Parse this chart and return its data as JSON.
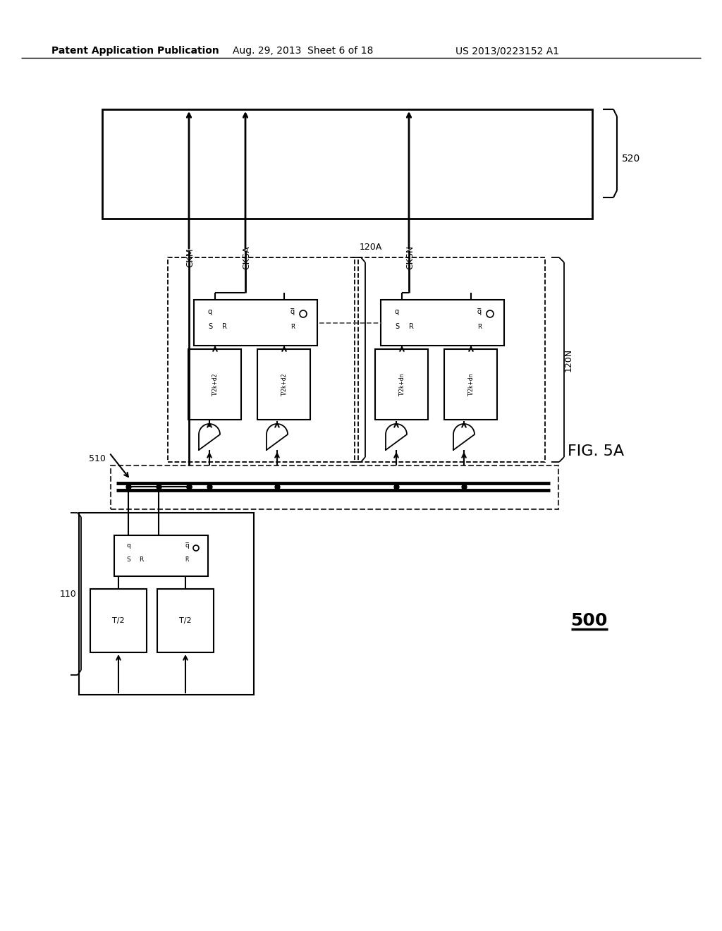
{
  "bg_color": "#ffffff",
  "line_color": "#000000",
  "header_text": "Patent Application Publication",
  "header_date": "Aug. 29, 2013  Sheet 6 of 18",
  "header_patent": "US 2013/0223152 A1",
  "fig_label": "FIG. 5A",
  "fig_number": "500",
  "label_520": "520",
  "label_510": "510",
  "label_110": "110",
  "label_120A": "120A",
  "label_120N": "120N",
  "label_CKM": "CKM",
  "label_CKSA": "CKSA",
  "label_CKSN": "CKSN"
}
